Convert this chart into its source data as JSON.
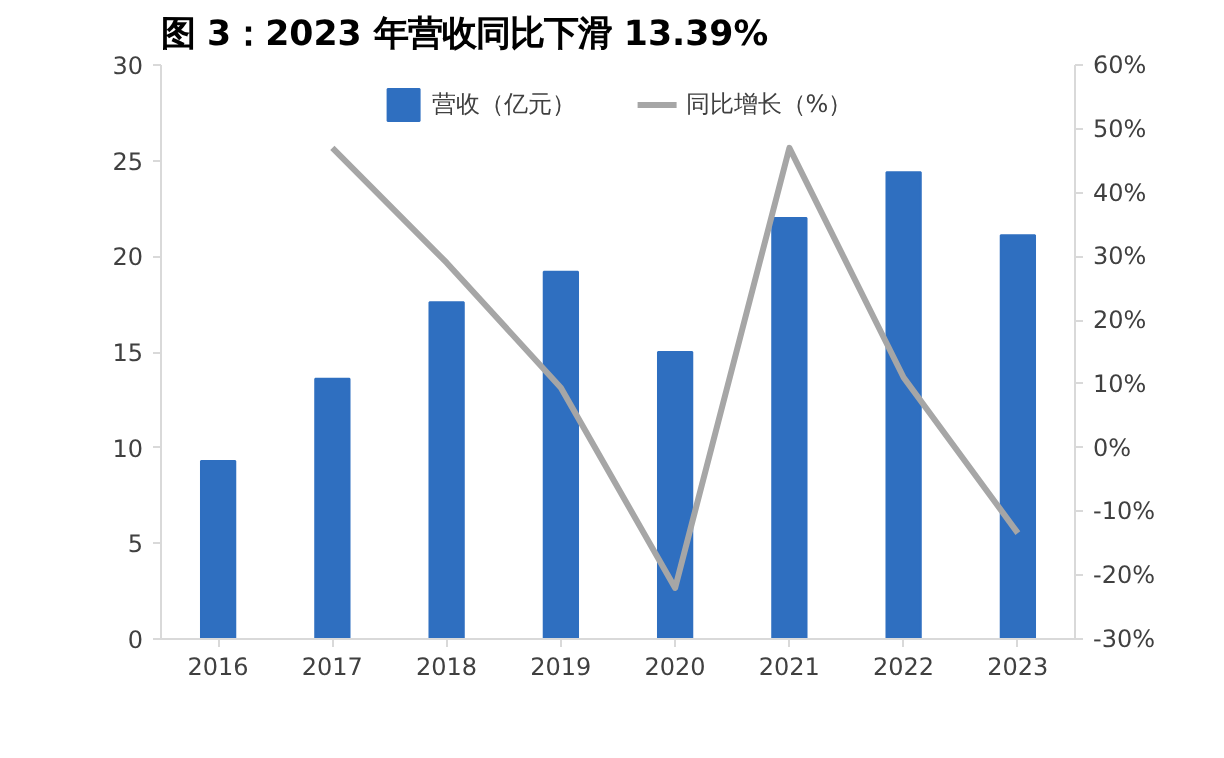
{
  "chart_data": {
    "type": "bar",
    "title": "图 3：2023 年营收同比下滑 13.39%",
    "categories": [
      "2016",
      "2017",
      "2018",
      "2019",
      "2020",
      "2021",
      "2022",
      "2023"
    ],
    "series": [
      {
        "name": "营收（亿元）",
        "color": "#2f6fc0",
        "values": [
          9.3,
          13.6,
          17.6,
          19.2,
          15.0,
          22.0,
          24.4,
          21.1
        ]
      },
      {
        "name": "同比增长（%）",
        "type": "line",
        "axis": "y2",
        "color": "#a6a6a6",
        "values": [
          null,
          47,
          29,
          9.4,
          -22,
          47,
          11,
          -13.4
        ]
      }
    ],
    "ylim": [
      0,
      30
    ],
    "yticks": [
      0,
      5,
      10,
      15,
      20,
      25,
      30
    ],
    "y2lim": [
      -30,
      60
    ],
    "y2ticks": [
      {
        "value": -30,
        "label": "-30%"
      },
      {
        "value": -20,
        "label": "-20%"
      },
      {
        "value": -10,
        "label": "-10%"
      },
      {
        "value": 0,
        "label": "0%"
      },
      {
        "value": 10,
        "label": "10%"
      },
      {
        "value": 20,
        "label": "20%"
      },
      {
        "value": 30,
        "label": "30%"
      },
      {
        "value": 40,
        "label": "40%"
      },
      {
        "value": 50,
        "label": "50%"
      },
      {
        "value": 60,
        "label": "60%"
      }
    ],
    "grid": false,
    "legend": "top"
  }
}
